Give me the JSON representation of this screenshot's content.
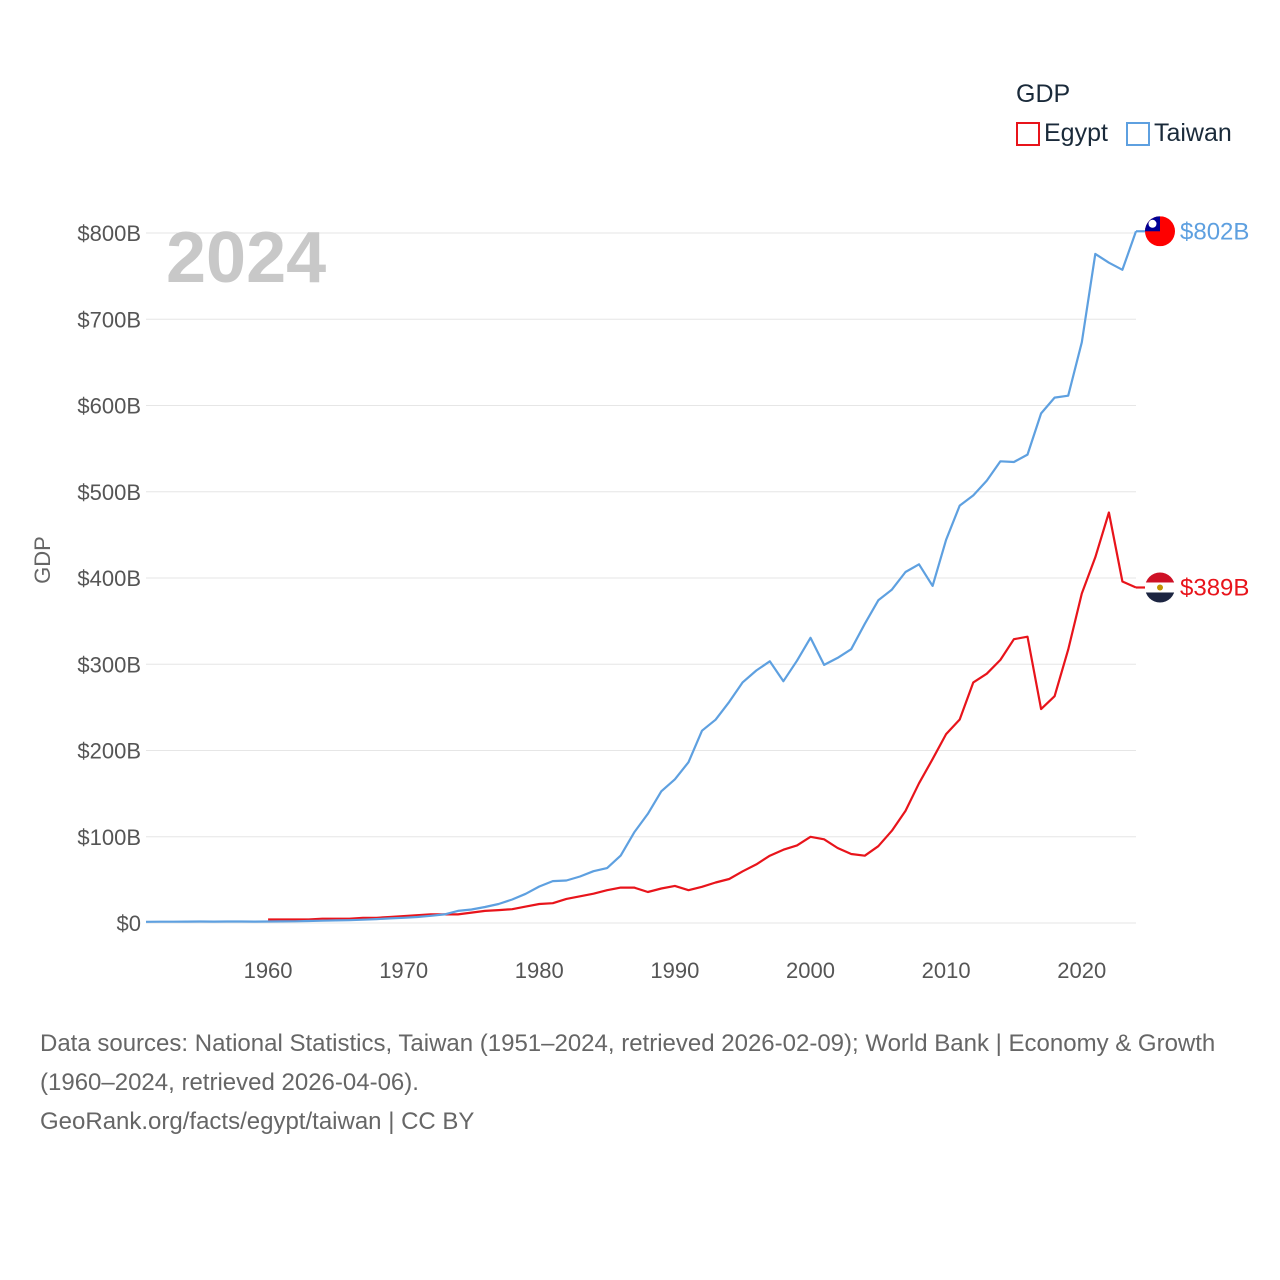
{
  "chart_data": {
    "type": "line",
    "title": "",
    "year_label": "2024",
    "ylabel": "GDP",
    "xlabel": "",
    "xlim": [
      1951,
      2024
    ],
    "ylim": [
      0,
      800
    ],
    "y_unit": "billions USD",
    "y_ticks": [
      0,
      100,
      200,
      300,
      400,
      500,
      600,
      700,
      800
    ],
    "y_tick_labels": [
      "$0",
      "$100B",
      "$200B",
      "$300B",
      "$400B",
      "$500B",
      "$600B",
      "$700B",
      "$800B"
    ],
    "x_ticks": [
      1960,
      1970,
      1980,
      1990,
      2000,
      2010,
      2020
    ],
    "x_tick_labels": [
      "1960",
      "1970",
      "1980",
      "1990",
      "2000",
      "2010",
      "2020"
    ],
    "legend_title": "GDP",
    "legend_position": "top-right",
    "series": [
      {
        "name": "Egypt",
        "color": "#e8141b",
        "end_label": "$389B",
        "flag": "egypt-flag-icon",
        "x_start": 1960,
        "values": [
          4,
          4,
          4,
          4,
          5,
          5,
          5,
          6,
          6,
          7,
          8,
          9,
          10,
          10,
          10,
          12,
          14,
          15,
          16,
          19,
          22,
          23,
          28,
          31,
          34,
          38,
          41,
          41,
          36,
          40,
          43,
          38,
          42,
          47,
          51,
          60,
          68,
          78,
          85,
          90,
          100,
          97,
          87,
          80,
          78,
          89,
          107,
          130,
          162,
          190,
          219,
          236,
          279,
          289,
          305,
          329,
          332,
          248,
          263,
          317,
          382,
          424,
          476,
          396,
          389
        ]
      },
      {
        "name": "Taiwan",
        "color": "#5ea0e0",
        "end_label": "$802B",
        "flag": "taiwan-flag-icon",
        "x_start": 1951,
        "values": [
          1.4,
          1.5,
          1.5,
          1.6,
          1.7,
          1.6,
          1.7,
          1.7,
          1.6,
          1.7,
          1.8,
          2,
          2.3,
          2.7,
          3,
          3.3,
          3.8,
          4.5,
          5.3,
          6,
          7,
          8.3,
          10,
          14,
          15.7,
          18.6,
          22,
          27.3,
          33.9,
          42.3,
          48.6,
          49.3,
          53.9,
          60.1,
          63.6,
          78.2,
          105,
          126.5,
          152.7,
          166.6,
          186.4,
          223,
          235.7,
          256.3,
          279.1,
          292.7,
          303.4,
          280.4,
          304.1,
          330.7,
          299.3,
          307.4,
          317.4,
          346.9,
          374.1,
          386.5,
          406.9,
          415.9,
          390.8,
          444.3,
          484,
          495.8,
          512.9,
          535.3,
          534.5,
          543.1,
          590.8,
          609.2,
          611.4,
          673.3,
          775.8,
          765.6,
          757.3,
          802
        ]
      }
    ]
  },
  "legend": {
    "title": "GDP",
    "items": [
      {
        "label": "Egypt",
        "color": "#e8141b"
      },
      {
        "label": "Taiwan",
        "color": "#5ea0e0"
      }
    ]
  },
  "footer": {
    "line1": "Data sources: National Statistics, Taiwan (1951–2024, retrieved 2026-02-09); World Bank | Economy & Growth (1960–2024, retrieved 2026-04-06).",
    "line2": "GeoRank.org/facts/egypt/taiwan | CC BY"
  }
}
